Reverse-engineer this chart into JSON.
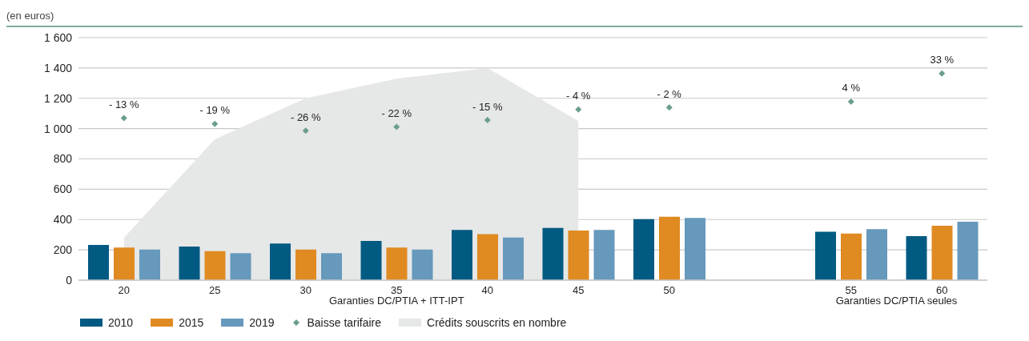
{
  "chart_data": {
    "type": "bar",
    "ylabel": "(en euros)",
    "categories": [
      "20",
      "25",
      "30",
      "35",
      "40",
      "45",
      "50",
      null,
      "55",
      "60"
    ],
    "series": [
      {
        "name": "2010",
        "color": "#005a82",
        "values": [
          233,
          222,
          242,
          259,
          332,
          344,
          403,
          null,
          320,
          290
        ]
      },
      {
        "name": "2015",
        "color": "#e08a22",
        "values": [
          215,
          191,
          202,
          215,
          303,
          327,
          418,
          null,
          307,
          359
        ]
      },
      {
        "name": "2019",
        "color": "#6699bb",
        "values": [
          202,
          178,
          178,
          202,
          281,
          331,
          410,
          null,
          336,
          386
        ]
      },
      {
        "name": "Baisse tarifaire",
        "type": "scatter",
        "color": "#6a9e8c",
        "marker": "diamond",
        "axis": "y2",
        "values": [
          -13,
          -19,
          -26,
          -22,
          -15,
          -4,
          -2,
          null,
          4,
          33
        ],
        "value_labels": [
          "- 13 %",
          "- 19 %",
          "- 26 %",
          "- 22 %",
          "- 15 %",
          "- 4 %",
          "- 2 %",
          null,
          "4 %",
          "33 %"
        ]
      },
      {
        "name": "Crédits souscrits en nombre",
        "type": "area",
        "color": "#e6e7e7",
        "values": [
          280,
          930,
          1200,
          1330,
          1400,
          1050,
          null,
          null,
          null,
          null
        ]
      }
    ],
    "ylim": [
      0,
      1600
    ],
    "yticks": [
      0,
      200,
      400,
      600,
      800,
      {
        "value": 1000,
        "label": "1 000"
      },
      {
        "value": 1200,
        "label": "1 200"
      },
      {
        "value": 1400,
        "label": "1 400"
      },
      {
        "value": 1600,
        "label": "1 600"
      }
    ],
    "y2lim": [
      -180,
      70
    ],
    "grid": "y",
    "legend": "bottom",
    "annotations": [
      "Garanties DC/PTIA + ITT-IPT",
      "Garanties DC/PTIA seules"
    ]
  }
}
